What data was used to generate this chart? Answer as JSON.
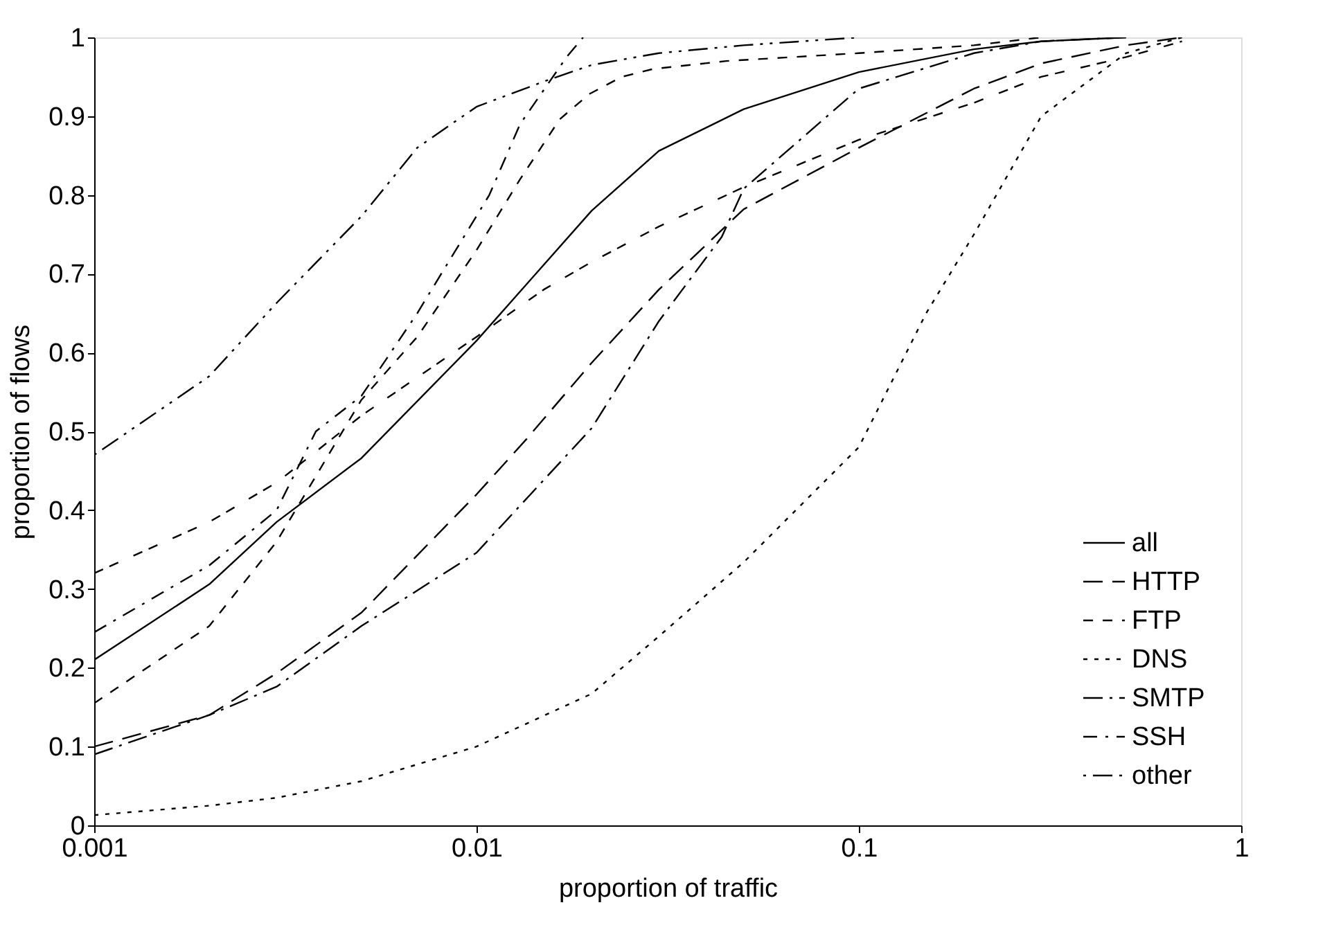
{
  "chart_data": {
    "type": "line",
    "xlabel": "proportion of traffic",
    "ylabel": "proportion of flows",
    "log": "x",
    "xlim": [
      0.001,
      1
    ],
    "xticks": [
      0.001,
      0.01,
      0.1,
      1
    ],
    "ylim": [
      0,
      1
    ],
    "yticks": [
      0,
      0.1,
      0.2,
      0.3,
      0.4,
      0.5,
      0.6,
      0.7,
      0.8,
      0.9,
      1
    ],
    "grid": false,
    "legend": "bottom right",
    "marker": "none",
    "series": [
      {
        "name": "all",
        "color": "#000000",
        "line_style": "solid",
        "x": [
          0.001,
          0.002,
          0.003,
          0.005,
          0.01,
          0.02,
          0.03,
          0.05,
          0.1,
          0.2,
          0.3,
          0.5
        ],
        "values": [
          0.21,
          0.306,
          0.385,
          0.466,
          0.615,
          0.78,
          0.856,
          0.909,
          0.956,
          0.985,
          0.995,
          1
        ]
      },
      {
        "name": "HTTP",
        "color": "#000000",
        "line_style": "longdash",
        "x": [
          0.001,
          0.002,
          0.003,
          0.005,
          0.01,
          0.0135,
          0.02,
          0.03,
          0.05,
          0.1,
          0.2,
          0.3,
          0.5,
          0.7
        ],
        "values": [
          0.1,
          0.14,
          0.193,
          0.27,
          0.42,
          0.49,
          0.587,
          0.68,
          0.782,
          0.86,
          0.935,
          0.967,
          0.99,
          1
        ]
      },
      {
        "name": "FTP",
        "color": "#000000",
        "line_style": "dashed",
        "x": [
          0.001,
          0.002,
          0.003,
          0.005,
          0.007,
          0.01,
          0.013,
          0.0165,
          0.0197,
          0.024,
          0.029,
          0.045,
          0.1,
          0.2,
          0.3
        ],
        "values": [
          0.155,
          0.253,
          0.36,
          0.54,
          0.62,
          0.73,
          0.82,
          0.896,
          0.928,
          0.95,
          0.96,
          0.97,
          0.98,
          0.99,
          1
        ]
      },
      {
        "name": "DNS",
        "color": "#000000",
        "line_style": "dotted",
        "x": [
          0.001,
          0.002,
          0.003,
          0.005,
          0.01,
          0.02,
          0.03,
          0.05,
          0.1,
          0.15,
          0.2,
          0.3,
          0.5,
          0.7
        ],
        "values": [
          0.013,
          0.025,
          0.035,
          0.056,
          0.1,
          0.167,
          0.24,
          0.334,
          0.48,
          0.65,
          0.75,
          0.9,
          0.98,
          1
        ]
      },
      {
        "name": "SMTP",
        "color": "#000000",
        "line_style": "dashdot",
        "x": [
          0.001,
          0.002,
          0.003,
          0.005,
          0.01,
          0.02,
          0.03,
          0.0438,
          0.05,
          0.1,
          0.2,
          0.3,
          0.5
        ],
        "values": [
          0.09,
          0.14,
          0.176,
          0.253,
          0.346,
          0.504,
          0.64,
          0.747,
          0.808,
          0.935,
          0.98,
          0.995,
          1
        ]
      },
      {
        "name": "SSH",
        "color": "#000000",
        "line_style": "dashdotlong",
        "x": [
          0.001,
          0.002,
          0.003,
          0.0038,
          0.005,
          0.007,
          0.0108,
          0.013,
          0.0172,
          0.019
        ],
        "values": [
          0.245,
          0.33,
          0.4,
          0.5,
          0.545,
          0.65,
          0.8,
          0.89,
          0.975,
          1
        ]
      },
      {
        "color": "#000000",
        "line_style": "dashgap",
        "x": [
          0.001,
          0.002,
          0.003,
          0.005,
          0.01,
          0.015,
          0.02,
          0.03,
          0.05,
          0.1,
          0.2,
          0.3,
          0.5,
          0.7
        ],
        "values": [
          0.32,
          0.385,
          0.435,
          0.52,
          0.62,
          0.68,
          0.715,
          0.76,
          0.81,
          0.87,
          0.917,
          0.95,
          0.975,
          0.995
        ]
      },
      {
        "name": "other",
        "color": "#000000",
        "line_style": "dashdotdot",
        "x": [
          0.001,
          0.002,
          0.003,
          0.005,
          0.007,
          0.01,
          0.015,
          0.02,
          0.03,
          0.05,
          0.1
        ],
        "values": [
          0.47,
          0.57,
          0.663,
          0.773,
          0.86,
          0.912,
          0.944,
          0.965,
          0.98,
          0.99,
          1
        ]
      }
    ]
  }
}
